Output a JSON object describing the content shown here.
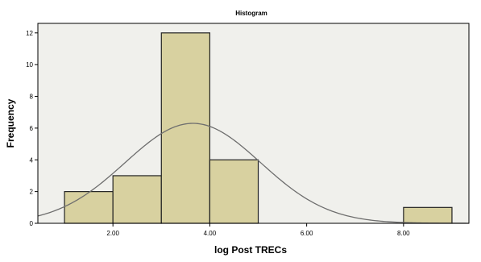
{
  "chart_data": {
    "type": "bar",
    "title": "Histogram",
    "xlabel": "log Post TRECs",
    "ylabel": "Frequency",
    "xlim": [
      0.45,
      9.35
    ],
    "ylim": [
      0,
      12.6
    ],
    "x_ticks": [
      2,
      4,
      6,
      8
    ],
    "x_tick_labels": [
      "2.00",
      "4.00",
      "6.00",
      "8.00"
    ],
    "y_ticks": [
      0,
      2,
      4,
      6,
      8,
      10,
      12
    ],
    "y_tick_labels": [
      "0",
      "2",
      "4",
      "6",
      "8",
      "10",
      "12"
    ],
    "bins": [
      {
        "x0": 1.0,
        "x1": 2.0,
        "value": 2
      },
      {
        "x0": 2.0,
        "x1": 3.0,
        "value": 3
      },
      {
        "x0": 3.0,
        "x1": 4.0,
        "value": 12
      },
      {
        "x0": 4.0,
        "x1": 5.0,
        "value": 4
      },
      {
        "x0": 5.0,
        "x1": 6.0,
        "value": 0
      },
      {
        "x0": 6.0,
        "x1": 7.0,
        "value": 0
      },
      {
        "x0": 7.0,
        "x1": 8.0,
        "value": 0
      },
      {
        "x0": 8.0,
        "x1": 9.0,
        "value": 1
      }
    ],
    "normal_curve": {
      "mean": 3.65,
      "sd": 1.4,
      "peak": 6.3
    },
    "grid": false,
    "legend": "none",
    "colors": {
      "plot_background": "#f0f0ec",
      "bar_fill": "#d8d1a0",
      "bar_stroke": "#222222",
      "curve": "#6e6e6e",
      "frame": "#000000"
    }
  }
}
